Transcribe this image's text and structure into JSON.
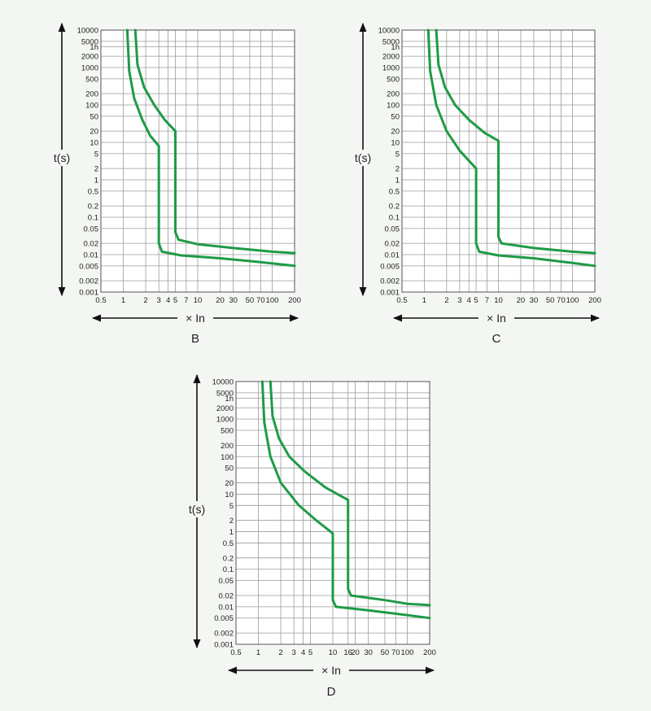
{
  "chart_data": [
    {
      "type": "line",
      "title": "B",
      "xlabel": "× In",
      "ylabel": "t(s)",
      "x_scale": "log",
      "y_scale": "log",
      "xlim": [
        0.5,
        200
      ],
      "ylim": [
        0.001,
        10000
      ],
      "x_ticks": [
        {
          "value": 0.5,
          "label": "0.5"
        },
        {
          "value": 1,
          "label": "1"
        },
        {
          "value": 2,
          "label": "2"
        },
        {
          "value": 3,
          "label": "3"
        },
        {
          "value": 4,
          "label": "4"
        },
        {
          "value": 5,
          "label": "5"
        },
        {
          "value": 7,
          "label": "7"
        },
        {
          "value": 10,
          "label": "10"
        },
        {
          "value": 20,
          "label": "20"
        },
        {
          "value": 30,
          "label": "30"
        },
        {
          "value": 50,
          "label": "50"
        },
        {
          "value": 70,
          "label": "70"
        },
        {
          "value": 100,
          "label": "100"
        },
        {
          "value": 200,
          "label": "200"
        }
      ],
      "y_ticks": [
        {
          "value": 10000,
          "label": "10000"
        },
        {
          "value": 5000,
          "label": "5000"
        },
        {
          "value": 3600,
          "label": "1h"
        },
        {
          "value": 2000,
          "label": "2000"
        },
        {
          "value": 1000,
          "label": "1000"
        },
        {
          "value": 500,
          "label": "500"
        },
        {
          "value": 200,
          "label": "200"
        },
        {
          "value": 100,
          "label": "100"
        },
        {
          "value": 50,
          "label": "50"
        },
        {
          "value": 20,
          "label": "20"
        },
        {
          "value": 10,
          "label": "10"
        },
        {
          "value": 5,
          "label": "5"
        },
        {
          "value": 2,
          "label": "2"
        },
        {
          "value": 1,
          "label": "1"
        },
        {
          "value": 0.5,
          "label": "0.5"
        },
        {
          "value": 0.2,
          "label": "0.2"
        },
        {
          "value": 0.1,
          "label": "0.1"
        },
        {
          "value": 0.05,
          "label": "0.05"
        },
        {
          "value": 0.02,
          "label": "0.02"
        },
        {
          "value": 0.01,
          "label": "0.01"
        },
        {
          "value": 0.005,
          "label": "0.005"
        },
        {
          "value": 0.002,
          "label": "0.002"
        },
        {
          "value": 0.001,
          "label": "0.001"
        }
      ],
      "grid": true,
      "series": [
        {
          "points": [
            [
              1.13,
              10000
            ],
            [
              1.2,
              800
            ],
            [
              1.4,
              150
            ],
            [
              1.8,
              40
            ],
            [
              2.3,
              15
            ],
            [
              3,
              8
            ],
            [
              3,
              0.02
            ],
            [
              3.3,
              0.012
            ],
            [
              6,
              0.0095
            ],
            [
              20,
              0.008
            ],
            [
              60,
              0.0065
            ],
            [
              200,
              0.005
            ]
          ]
        },
        {
          "points": [
            [
              1.45,
              10000
            ],
            [
              1.55,
              1200
            ],
            [
              1.9,
              300
            ],
            [
              2.6,
              100
            ],
            [
              3.6,
              40
            ],
            [
              5,
              20
            ],
            [
              5,
              0.04
            ],
            [
              5.5,
              0.025
            ],
            [
              10,
              0.019
            ],
            [
              30,
              0.015
            ],
            [
              100,
              0.012
            ],
            [
              200,
              0.011
            ]
          ]
        }
      ]
    },
    {
      "type": "line",
      "title": "C",
      "xlabel": "× In",
      "ylabel": "t(s)",
      "x_scale": "log",
      "y_scale": "log",
      "xlim": [
        0.5,
        200
      ],
      "ylim": [
        0.001,
        10000
      ],
      "x_ticks": [
        {
          "value": 0.5,
          "label": "0.5"
        },
        {
          "value": 1,
          "label": "1"
        },
        {
          "value": 2,
          "label": "2"
        },
        {
          "value": 3,
          "label": "3"
        },
        {
          "value": 4,
          "label": "4"
        },
        {
          "value": 5,
          "label": "5"
        },
        {
          "value": 7,
          "label": "7"
        },
        {
          "value": 10,
          "label": "10"
        },
        {
          "value": 20,
          "label": "20"
        },
        {
          "value": 30,
          "label": "30"
        },
        {
          "value": 50,
          "label": "50"
        },
        {
          "value": 70,
          "label": "70"
        },
        {
          "value": 100,
          "label": "100"
        },
        {
          "value": 200,
          "label": "200"
        }
      ],
      "y_ticks": [
        {
          "value": 10000,
          "label": "10000"
        },
        {
          "value": 5000,
          "label": "5000"
        },
        {
          "value": 3600,
          "label": "1h"
        },
        {
          "value": 2000,
          "label": "2000"
        },
        {
          "value": 1000,
          "label": "1000"
        },
        {
          "value": 500,
          "label": "500"
        },
        {
          "value": 200,
          "label": "200"
        },
        {
          "value": 100,
          "label": "100"
        },
        {
          "value": 50,
          "label": "50"
        },
        {
          "value": 20,
          "label": "20"
        },
        {
          "value": 10,
          "label": "10"
        },
        {
          "value": 5,
          "label": "5"
        },
        {
          "value": 2,
          "label": "2"
        },
        {
          "value": 1,
          "label": "1"
        },
        {
          "value": 0.5,
          "label": "0.5"
        },
        {
          "value": 0.2,
          "label": "0.2"
        },
        {
          "value": 0.1,
          "label": "0.1"
        },
        {
          "value": 0.05,
          "label": "0.05"
        },
        {
          "value": 0.02,
          "label": "0.02"
        },
        {
          "value": 0.01,
          "label": "0.01"
        },
        {
          "value": 0.005,
          "label": "0.005"
        },
        {
          "value": 0.002,
          "label": "0.002"
        },
        {
          "value": 0.001,
          "label": "0.001"
        }
      ],
      "grid": true,
      "series": [
        {
          "points": [
            [
              1.13,
              10000
            ],
            [
              1.2,
              800
            ],
            [
              1.45,
              100
            ],
            [
              2,
              20
            ],
            [
              3,
              6
            ],
            [
              5,
              2
            ],
            [
              5,
              0.02
            ],
            [
              5.5,
              0.012
            ],
            [
              10,
              0.0095
            ],
            [
              30,
              0.008
            ],
            [
              100,
              0.006
            ],
            [
              200,
              0.005
            ]
          ]
        },
        {
          "points": [
            [
              1.45,
              10000
            ],
            [
              1.55,
              1200
            ],
            [
              1.9,
              300
            ],
            [
              2.6,
              100
            ],
            [
              4,
              40
            ],
            [
              6.5,
              18
            ],
            [
              10,
              11
            ],
            [
              10,
              0.03
            ],
            [
              11,
              0.02
            ],
            [
              30,
              0.015
            ],
            [
              100,
              0.012
            ],
            [
              200,
              0.011
            ]
          ]
        }
      ]
    },
    {
      "type": "line",
      "title": "D",
      "xlabel": "× In",
      "ylabel": "t(s)",
      "x_scale": "log",
      "y_scale": "log",
      "xlim": [
        0.5,
        200
      ],
      "ylim": [
        0.001,
        10000
      ],
      "x_ticks": [
        {
          "value": 0.5,
          "label": "0.5"
        },
        {
          "value": 1,
          "label": "1"
        },
        {
          "value": 2,
          "label": "2"
        },
        {
          "value": 3,
          "label": "3"
        },
        {
          "value": 4,
          "label": "4"
        },
        {
          "value": 5,
          "label": "5"
        },
        {
          "value": 10,
          "label": "10"
        },
        {
          "value": 16,
          "label": "16"
        },
        {
          "value": 20,
          "label": "20"
        },
        {
          "value": 30,
          "label": "30"
        },
        {
          "value": 50,
          "label": "50"
        },
        {
          "value": 70,
          "label": "70"
        },
        {
          "value": 100,
          "label": "100"
        },
        {
          "value": 200,
          "label": "200"
        }
      ],
      "y_ticks": [
        {
          "value": 10000,
          "label": "10000"
        },
        {
          "value": 5000,
          "label": "5000"
        },
        {
          "value": 3600,
          "label": "1h"
        },
        {
          "value": 2000,
          "label": "2000"
        },
        {
          "value": 1000,
          "label": "1000"
        },
        {
          "value": 500,
          "label": "500"
        },
        {
          "value": 200,
          "label": "200"
        },
        {
          "value": 100,
          "label": "100"
        },
        {
          "value": 50,
          "label": "50"
        },
        {
          "value": 20,
          "label": "20"
        },
        {
          "value": 10,
          "label": "10"
        },
        {
          "value": 5,
          "label": "5"
        },
        {
          "value": 2,
          "label": "2"
        },
        {
          "value": 1,
          "label": "1"
        },
        {
          "value": 0.5,
          "label": "0.5"
        },
        {
          "value": 0.2,
          "label": "0.2"
        },
        {
          "value": 0.1,
          "label": "0.1"
        },
        {
          "value": 0.05,
          "label": "0.05"
        },
        {
          "value": 0.02,
          "label": "0.02"
        },
        {
          "value": 0.01,
          "label": "0.01"
        },
        {
          "value": 0.005,
          "label": "0.005"
        },
        {
          "value": 0.002,
          "label": "0.002"
        },
        {
          "value": 0.001,
          "label": "0.001"
        }
      ],
      "grid": true,
      "series": [
        {
          "points": [
            [
              1.13,
              10000
            ],
            [
              1.2,
              800
            ],
            [
              1.45,
              100
            ],
            [
              2,
              20
            ],
            [
              3.5,
              5
            ],
            [
              6,
              2
            ],
            [
              10,
              0.9
            ],
            [
              10,
              0.015
            ],
            [
              11,
              0.01
            ],
            [
              30,
              0.008
            ],
            [
              100,
              0.006
            ],
            [
              200,
              0.005
            ]
          ]
        },
        {
          "points": [
            [
              1.45,
              10000
            ],
            [
              1.55,
              1200
            ],
            [
              1.9,
              300
            ],
            [
              2.6,
              100
            ],
            [
              4.2,
              40
            ],
            [
              8,
              15
            ],
            [
              16,
              7
            ],
            [
              16,
              0.03
            ],
            [
              17.5,
              0.02
            ],
            [
              50,
              0.015
            ],
            [
              100,
              0.012
            ],
            [
              200,
              0.011
            ]
          ]
        }
      ]
    }
  ],
  "style": {
    "curve_color": "#1e9b46",
    "grid_color": "#9a9a9a",
    "axis_color": "#111111",
    "background": "#f3f6f2",
    "plot_background": "#ffffff"
  }
}
